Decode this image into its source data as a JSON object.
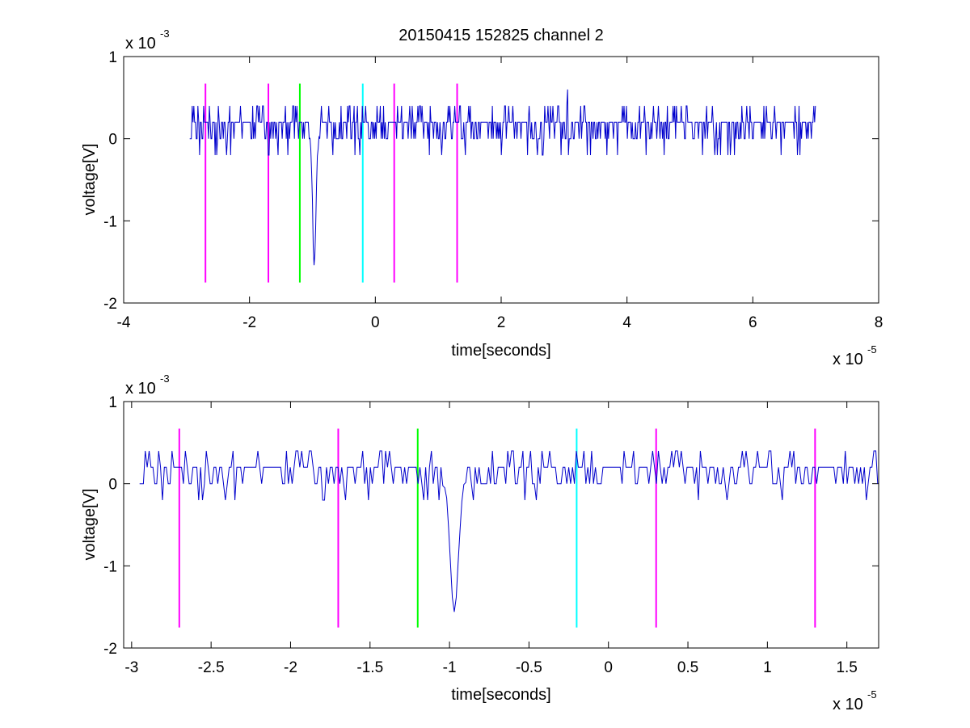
{
  "chart_data": [
    {
      "type": "line",
      "title": "20150415 152825 channel 2",
      "xlabel": "time[seconds]",
      "ylabel": "voltage[V]",
      "x_scale_label": "x 10",
      "x_scale_exponent": "-5",
      "y_scale_label": "x 10",
      "y_scale_exponent": "-3",
      "xlim": [
        -4,
        8
      ],
      "ylim": [
        -2,
        1
      ],
      "x_ticks": [
        "-4",
        "-2",
        "0",
        "2",
        "4",
        "6",
        "8"
      ],
      "y_ticks": [
        "-2",
        "-1",
        "0",
        "1"
      ],
      "signal": {
        "color": "#0000cc",
        "x_start": -2.95,
        "x_end": 7.0,
        "baseline": 0.15,
        "noise_levels": [
          0.0,
          0.2,
          0.4
        ],
        "spike": {
          "x": -0.97,
          "min": -1.6
        },
        "max_peak": {
          "x": 3.05,
          "value": 0.6
        }
      },
      "markers": [
        {
          "x": -2.7,
          "color": "#ff00ff",
          "top": 0.67,
          "bottom": -1.75
        },
        {
          "x": -1.7,
          "color": "#ff00ff",
          "top": 0.67,
          "bottom": -1.75
        },
        {
          "x": -1.2,
          "color": "#00ff00",
          "top": 0.67,
          "bottom": -1.75
        },
        {
          "x": -0.2,
          "color": "#00ffff",
          "top": 0.67,
          "bottom": -1.75
        },
        {
          "x": 0.3,
          "color": "#ff00ff",
          "top": 0.67,
          "bottom": -1.75
        },
        {
          "x": 1.3,
          "color": "#ff00ff",
          "top": 0.67,
          "bottom": -1.75
        }
      ]
    },
    {
      "type": "line",
      "title": "",
      "xlabel": "time[seconds]",
      "ylabel": "voltage[V]",
      "x_scale_label": "x 10",
      "x_scale_exponent": "-5",
      "y_scale_label": "x 10",
      "y_scale_exponent": "-3",
      "xlim": [
        -3.05,
        1.7
      ],
      "ylim": [
        -2,
        1
      ],
      "x_ticks": [
        "-3",
        "-2.5",
        "-2",
        "-1.5",
        "-1",
        "-0.5",
        "0",
        "0.5",
        "1",
        "1.5"
      ],
      "x_tick_values": [
        -3,
        -2.5,
        -2,
        -1.5,
        -1,
        -0.5,
        0,
        0.5,
        1,
        1.5
      ],
      "y_ticks": [
        "-2",
        "-1",
        "0",
        "1"
      ],
      "signal": {
        "color": "#0000cc",
        "x_start": -2.95,
        "x_end": 1.7,
        "baseline": 0.15,
        "noise_levels": [
          0.0,
          0.2,
          0.4
        ],
        "spike": {
          "x": -0.97,
          "min": -1.6
        }
      },
      "markers": [
        {
          "x": -2.7,
          "color": "#ff00ff",
          "top": 0.67,
          "bottom": -1.75
        },
        {
          "x": -1.7,
          "color": "#ff00ff",
          "top": 0.67,
          "bottom": -1.75
        },
        {
          "x": -1.2,
          "color": "#00ff00",
          "top": 0.67,
          "bottom": -1.75
        },
        {
          "x": -0.2,
          "color": "#00ffff",
          "top": 0.67,
          "bottom": -1.75
        },
        {
          "x": 0.3,
          "color": "#ff00ff",
          "top": 0.67,
          "bottom": -1.75
        },
        {
          "x": 1.3,
          "color": "#ff00ff",
          "top": 0.67,
          "bottom": -1.75
        }
      ]
    }
  ]
}
